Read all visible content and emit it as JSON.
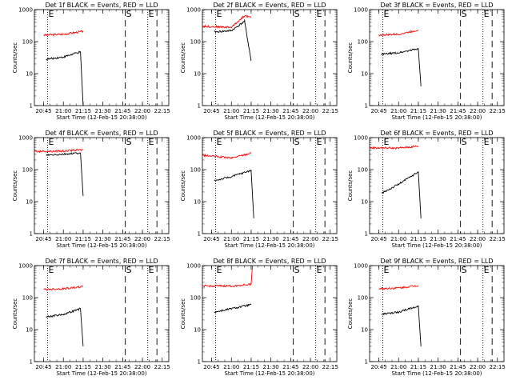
{
  "chart_data": [
    {
      "type": "line",
      "title": "Det 1f BLACK = Events, RED = LLD",
      "ylabel": "Counts/sec",
      "xlabel": "Start Time (12-Feb-15 20:38:00)",
      "x_ticks": [
        "20:45",
        "21:00",
        "21:15",
        "21:30",
        "21:45",
        "22:00",
        "22:15"
      ],
      "y_ticks": [
        "1",
        "10",
        "100",
        "1000"
      ],
      "y_scale": "log",
      "ylim": [
        1,
        1000
      ],
      "markers": [
        {
          "label": "E",
          "type": "dotted"
        },
        {
          "label": "S",
          "type": "dashed"
        },
        {
          "label": "E",
          "type": "dotted"
        }
      ],
      "series": [
        {
          "name": "RED",
          "color": "#ff0000",
          "x": [
            "20:45",
            "21:00",
            "21:15"
          ],
          "y": [
            160,
            170,
            210
          ]
        },
        {
          "name": "BLACK",
          "color": "#000000",
          "x": [
            "20:47",
            "21:00",
            "21:13",
            "21:15"
          ],
          "y": [
            28,
            33,
            48,
            1
          ]
        }
      ]
    },
    {
      "type": "line",
      "title": "Det 2f BLACK = Events, RED = LLD",
      "ylabel": "Counts/sec",
      "xlabel": "Start Time (12-Feb-15 20:38:00)",
      "x_ticks": [
        "20:45",
        "21:00",
        "21:15",
        "21:30",
        "21:45",
        "22:00",
        "22:15"
      ],
      "y_ticks": [
        "1",
        "10",
        "100",
        "1000"
      ],
      "y_scale": "log",
      "ylim": [
        1,
        1000
      ],
      "markers": [
        {
          "label": "E",
          "type": "dotted"
        },
        {
          "label": "S",
          "type": "dashed"
        },
        {
          "label": "E",
          "type": "dotted"
        }
      ],
      "series": [
        {
          "name": "RED",
          "color": "#ff0000",
          "x": [
            "20:38",
            "21:00",
            "21:10",
            "21:15"
          ],
          "y": [
            300,
            280,
            650,
            560
          ]
        },
        {
          "name": "BLACK",
          "color": "#000000",
          "x": [
            "20:47",
            "21:00",
            "21:10",
            "21:15"
          ],
          "y": [
            200,
            220,
            430,
            25
          ]
        }
      ]
    },
    {
      "type": "line",
      "title": "Det 3f BLACK = Events, RED = LLD",
      "ylabel": "Counts/sec",
      "xlabel": "Start Time (12-Feb-15 20:38:00)",
      "x_ticks": [
        "20:45",
        "21:00",
        "21:15",
        "21:30",
        "21:45",
        "22:00",
        "22:15"
      ],
      "y_ticks": [
        "1",
        "10",
        "100",
        "1000"
      ],
      "y_scale": "log",
      "ylim": [
        1,
        1000
      ],
      "markers": [
        {
          "label": "E",
          "type": "dotted"
        },
        {
          "label": "S",
          "type": "dashed"
        },
        {
          "label": "E",
          "type": "dotted"
        }
      ],
      "series": [
        {
          "name": "RED",
          "color": "#ff0000",
          "x": [
            "20:45",
            "21:00",
            "21:15"
          ],
          "y": [
            160,
            170,
            230
          ]
        },
        {
          "name": "BLACK",
          "color": "#000000",
          "x": [
            "20:47",
            "21:00",
            "21:15",
            "21:17"
          ],
          "y": [
            40,
            45,
            60,
            4
          ]
        }
      ]
    },
    {
      "type": "line",
      "title": "Det 4f BLACK = Events, RED = LLD",
      "ylabel": "Counts/sec",
      "xlabel": "Start Time (12-Feb-15 20:38:00)",
      "x_ticks": [
        "20:45",
        "21:00",
        "21:15",
        "21:30",
        "21:45",
        "22:00",
        "22:15"
      ],
      "y_ticks": [
        "1",
        "10",
        "100",
        "1000"
      ],
      "y_scale": "log",
      "ylim": [
        1,
        1000
      ],
      "markers": [
        {
          "label": "E",
          "type": "dotted"
        },
        {
          "label": "S",
          "type": "dashed"
        },
        {
          "label": "E",
          "type": "dotted"
        }
      ],
      "series": [
        {
          "name": "RED",
          "color": "#ff0000",
          "x": [
            "20:38",
            "21:00",
            "21:15"
          ],
          "y": [
            370,
            380,
            420
          ]
        },
        {
          "name": "BLACK",
          "color": "#000000",
          "x": [
            "20:47",
            "21:00",
            "21:13",
            "21:15"
          ],
          "y": [
            280,
            300,
            330,
            15
          ]
        }
      ]
    },
    {
      "type": "line",
      "title": "Det 5f BLACK = Events, RED = LLD",
      "ylabel": "Counts/sec",
      "xlabel": "Start Time (12-Feb-15 20:38:00)",
      "x_ticks": [
        "20:45",
        "21:00",
        "21:15",
        "21:30",
        "21:45",
        "22:00",
        "22:15"
      ],
      "y_ticks": [
        "1",
        "10",
        "100",
        "1000"
      ],
      "y_scale": "log",
      "ylim": [
        1,
        1000
      ],
      "markers": [
        {
          "label": "E",
          "type": "dotted"
        },
        {
          "label": "S",
          "type": "dashed"
        },
        {
          "label": "E",
          "type": "dotted"
        }
      ],
      "series": [
        {
          "name": "RED",
          "color": "#ff0000",
          "x": [
            "20:38",
            "21:00",
            "21:15"
          ],
          "y": [
            280,
            230,
            330
          ]
        },
        {
          "name": "BLACK",
          "color": "#000000",
          "x": [
            "20:47",
            "21:00",
            "21:15",
            "21:17"
          ],
          "y": [
            45,
            60,
            95,
            3
          ]
        }
      ]
    },
    {
      "type": "line",
      "title": "Det 6f BLACK = Events, RED = LLD",
      "ylabel": "Counts/sec",
      "xlabel": "Start Time (12-Feb-15 20:38:00)",
      "x_ticks": [
        "20:45",
        "21:00",
        "21:15",
        "21:30",
        "21:45",
        "22:00",
        "22:15"
      ],
      "y_ticks": [
        "1",
        "10",
        "100",
        "1000"
      ],
      "y_scale": "log",
      "ylim": [
        1,
        1000
      ],
      "markers": [
        {
          "label": "E",
          "type": "dotted"
        },
        {
          "label": "S",
          "type": "dashed"
        },
        {
          "label": "E",
          "type": "dotted"
        }
      ],
      "series": [
        {
          "name": "RED",
          "color": "#ff0000",
          "x": [
            "20:38",
            "21:00",
            "21:15"
          ],
          "y": [
            480,
            470,
            540
          ]
        },
        {
          "name": "BLACK",
          "color": "#000000",
          "x": [
            "20:47",
            "21:00",
            "21:15",
            "21:17"
          ],
          "y": [
            18,
            35,
            85,
            3
          ]
        }
      ]
    },
    {
      "type": "line",
      "title": "Det 7f BLACK = Events, RED = LLD",
      "ylabel": "Counts/sec",
      "xlabel": "Start Time (12-Feb-15 20:38:00)",
      "x_ticks": [
        "20:45",
        "21:00",
        "21:15",
        "21:30",
        "21:45",
        "22:00",
        "22:15"
      ],
      "y_ticks": [
        "1",
        "10",
        "100",
        "1000"
      ],
      "y_scale": "log",
      "ylim": [
        1,
        1000
      ],
      "markers": [
        {
          "label": "E",
          "type": "dotted"
        },
        {
          "label": "S",
          "type": "dashed"
        },
        {
          "label": "E",
          "type": "dotted"
        }
      ],
      "series": [
        {
          "name": "RED",
          "color": "#ff0000",
          "x": [
            "20:45",
            "21:00",
            "21:15"
          ],
          "y": [
            180,
            190,
            220
          ]
        },
        {
          "name": "BLACK",
          "color": "#000000",
          "x": [
            "20:47",
            "21:00",
            "21:13",
            "21:15"
          ],
          "y": [
            25,
            30,
            45,
            3
          ]
        }
      ]
    },
    {
      "type": "line",
      "title": "Det 8f BLACK = Events, RED = LLD",
      "ylabel": "Counts/sec",
      "xlabel": "Start Time (12-Feb-15 20:38:00)",
      "x_ticks": [
        "20:45",
        "21:00",
        "21:15",
        "21:30",
        "21:45",
        "22:00",
        "22:15"
      ],
      "y_ticks": [
        "1",
        "10",
        "100",
        "1000"
      ],
      "y_scale": "log",
      "ylim": [
        1,
        1000
      ],
      "markers": [
        {
          "label": "E",
          "type": "dotted"
        },
        {
          "label": "S",
          "type": "dashed"
        },
        {
          "label": "E",
          "type": "dotted"
        }
      ],
      "series": [
        {
          "name": "RED",
          "color": "#ff0000",
          "x": [
            "20:38",
            "21:00",
            "21:15",
            "21:16"
          ],
          "y": [
            230,
            230,
            260,
            1000
          ]
        },
        {
          "name": "BLACK",
          "color": "#000000",
          "x": [
            "20:47",
            "21:00",
            "21:15"
          ],
          "y": [
            35,
            45,
            60
          ]
        }
      ]
    },
    {
      "type": "line",
      "title": "Det 9f BLACK = Events, RED = LLD",
      "ylabel": "Counts/sec",
      "xlabel": "Start Time (12-Feb-15 20:38:00)",
      "x_ticks": [
        "20:45",
        "21:00",
        "21:15",
        "21:30",
        "21:45",
        "22:00",
        "22:15"
      ],
      "y_ticks": [
        "1",
        "10",
        "100",
        "1000"
      ],
      "y_scale": "log",
      "ylim": [
        1,
        1000
      ],
      "markers": [
        {
          "label": "E",
          "type": "dotted"
        },
        {
          "label": "S",
          "type": "dashed"
        },
        {
          "label": "E",
          "type": "dotted"
        }
      ],
      "series": [
        {
          "name": "RED",
          "color": "#ff0000",
          "x": [
            "20:45",
            "21:00",
            "21:15"
          ],
          "y": [
            190,
            200,
            240
          ]
        },
        {
          "name": "BLACK",
          "color": "#000000",
          "x": [
            "20:47",
            "21:00",
            "21:15",
            "21:17"
          ],
          "y": [
            30,
            35,
            55,
            3
          ]
        }
      ]
    }
  ]
}
